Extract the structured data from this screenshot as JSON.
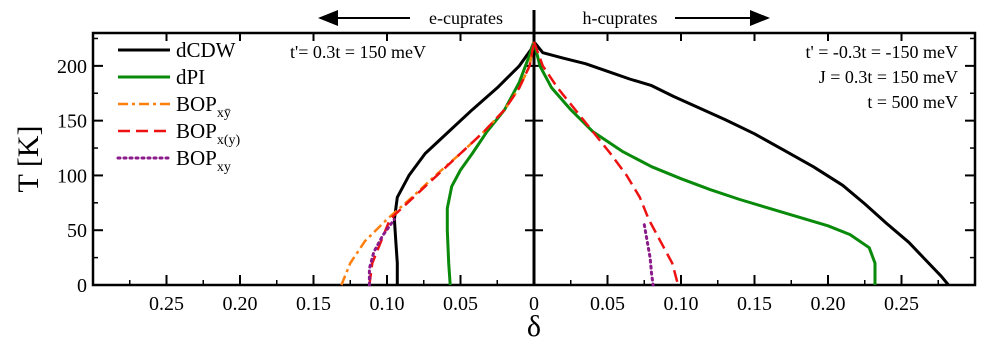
{
  "chart_data": {
    "type": "line",
    "xlabel": "δ",
    "ylabel": "T [K]",
    "xlim": [
      -0.3,
      0.3
    ],
    "ylim": [
      0,
      230
    ],
    "x_ticks": [
      {
        "value": -0.25,
        "label": "0.25"
      },
      {
        "value": -0.2,
        "label": "0.20"
      },
      {
        "value": -0.15,
        "label": "0.15"
      },
      {
        "value": -0.1,
        "label": "0.10"
      },
      {
        "value": -0.05,
        "label": "0.05"
      },
      {
        "value": 0,
        "label": "0"
      },
      {
        "value": 0.05,
        "label": "0.05"
      },
      {
        "value": 0.1,
        "label": "0.10"
      },
      {
        "value": 0.15,
        "label": "0.15"
      },
      {
        "value": 0.2,
        "label": "0.20"
      },
      {
        "value": 0.25,
        "label": "0.25"
      }
    ],
    "y_ticks": [
      0,
      50,
      100,
      150,
      200
    ],
    "regions": {
      "left": "e-cuprates",
      "right": "h-cuprates"
    },
    "annotations": {
      "left": [
        "t'= 0.3t = 150 meV"
      ],
      "right": [
        "t' = -0.3t = -150 meV",
        "J = 0.3t = 150 meV",
        "t = 500 meV"
      ]
    },
    "legend": {
      "placement": "top-left",
      "entries": [
        {
          "name": "dCDW",
          "sub": ""
        },
        {
          "name": "dPI",
          "sub": ""
        },
        {
          "name": "BOP",
          "sub": "xȳ"
        },
        {
          "name": "BOP",
          "sub": "x(y)"
        },
        {
          "name": "BOP",
          "sub": "xy"
        }
      ]
    },
    "series": [
      {
        "name": "dCDW",
        "color": "#000000",
        "dash": "solid",
        "segments": [
          [
            [
              -0.093,
              0
            ],
            [
              -0.093,
              20
            ],
            [
              -0.094,
              40
            ],
            [
              -0.095,
              60
            ],
            [
              -0.093,
              80
            ],
            [
              -0.085,
              100
            ],
            [
              -0.074,
              120
            ],
            [
              -0.058,
              140
            ],
            [
              -0.042,
              160
            ],
            [
              -0.025,
              180
            ],
            [
              -0.01,
              200
            ],
            [
              -0.002,
              215
            ],
            [
              0,
              222
            ]
          ],
          [
            [
              0,
              222
            ],
            [
              0.006,
              212
            ],
            [
              0.02,
              207
            ],
            [
              0.035,
              202
            ],
            [
              0.05,
              195
            ],
            [
              0.065,
              188
            ],
            [
              0.08,
              182
            ],
            [
              0.095,
              172
            ],
            [
              0.11,
              163
            ],
            [
              0.13,
              151
            ],
            [
              0.15,
              138
            ],
            [
              0.17,
              123
            ],
            [
              0.19,
              108
            ],
            [
              0.21,
              91
            ],
            [
              0.225,
              74
            ],
            [
              0.24,
              56
            ],
            [
              0.255,
              39
            ],
            [
              0.267,
              22
            ],
            [
              0.277,
              8
            ],
            [
              0.282,
              0
            ]
          ]
        ]
      },
      {
        "name": "dPI",
        "color": "#0a8a0a",
        "dash": "solid",
        "segments": [
          [
            [
              -0.057,
              0
            ],
            [
              -0.058,
              20
            ],
            [
              -0.059,
              50
            ],
            [
              -0.059,
              70
            ],
            [
              -0.056,
              90
            ],
            [
              -0.05,
              105
            ],
            [
              -0.042,
              120
            ],
            [
              -0.032,
              140
            ],
            [
              -0.02,
              160
            ],
            [
              -0.01,
              185
            ],
            [
              -0.003,
              210
            ],
            [
              0,
              222
            ]
          ],
          [
            [
              0,
              222
            ],
            [
              0.004,
              200
            ],
            [
              0.012,
              180
            ],
            [
              0.025,
              160
            ],
            [
              0.04,
              140
            ],
            [
              0.06,
              122
            ],
            [
              0.08,
              108
            ],
            [
              0.1,
              97
            ],
            [
              0.12,
              87
            ],
            [
              0.14,
              78
            ],
            [
              0.16,
              70
            ],
            [
              0.18,
              62
            ],
            [
              0.2,
              54
            ],
            [
              0.215,
              46
            ],
            [
              0.228,
              34
            ],
            [
              0.232,
              20
            ],
            [
              0.232,
              0
            ]
          ]
        ]
      },
      {
        "name": "BOP_xȳ",
        "color": "#ff7f0e",
        "dash": "dashdot",
        "segments": [
          [
            [
              -0.131,
              0
            ],
            [
              -0.125,
              20
            ],
            [
              -0.115,
              40
            ],
            [
              -0.1,
              60
            ],
            [
              -0.083,
              80
            ],
            [
              -0.067,
              100
            ],
            [
              -0.05,
              120
            ],
            [
              -0.034,
              140
            ],
            [
              -0.02,
              160
            ],
            [
              -0.01,
              180
            ],
            [
              -0.003,
              200
            ],
            [
              0,
              222
            ]
          ]
        ]
      },
      {
        "name": "BOP_x(y)",
        "color": "#ee1111",
        "dash": "dashed",
        "segments": [
          [
            [
              -0.112,
              0
            ],
            [
              -0.11,
              20
            ],
            [
              -0.104,
              40
            ],
            [
              -0.098,
              60
            ],
            [
              -0.082,
              80
            ],
            [
              -0.066,
              100
            ],
            [
              -0.05,
              120
            ],
            [
              -0.034,
              140
            ],
            [
              -0.02,
              160
            ],
            [
              -0.01,
              180
            ],
            [
              -0.003,
              200
            ],
            [
              0,
              222
            ]
          ],
          [
            [
              0,
              222
            ],
            [
              0.006,
              200
            ],
            [
              0.016,
              180
            ],
            [
              0.028,
              160
            ],
            [
              0.04,
              140
            ],
            [
              0.052,
              120
            ],
            [
              0.063,
              100
            ],
            [
              0.072,
              80
            ],
            [
              0.078,
              60
            ],
            [
              0.086,
              40
            ],
            [
              0.094,
              20
            ],
            [
              0.098,
              0
            ]
          ]
        ]
      },
      {
        "name": "BOP_xy",
        "color": "#8b1a8b",
        "dash": "dotted",
        "segments": [
          [
            [
              -0.112,
              0
            ],
            [
              -0.112,
              15
            ],
            [
              -0.109,
              30
            ],
            [
              -0.103,
              45
            ],
            [
              -0.095,
              60
            ]
          ],
          [
            [
              0.075,
              55
            ],
            [
              0.077,
              40
            ],
            [
              0.079,
              25
            ],
            [
              0.08,
              10
            ],
            [
              0.081,
              0
            ]
          ]
        ]
      }
    ]
  }
}
